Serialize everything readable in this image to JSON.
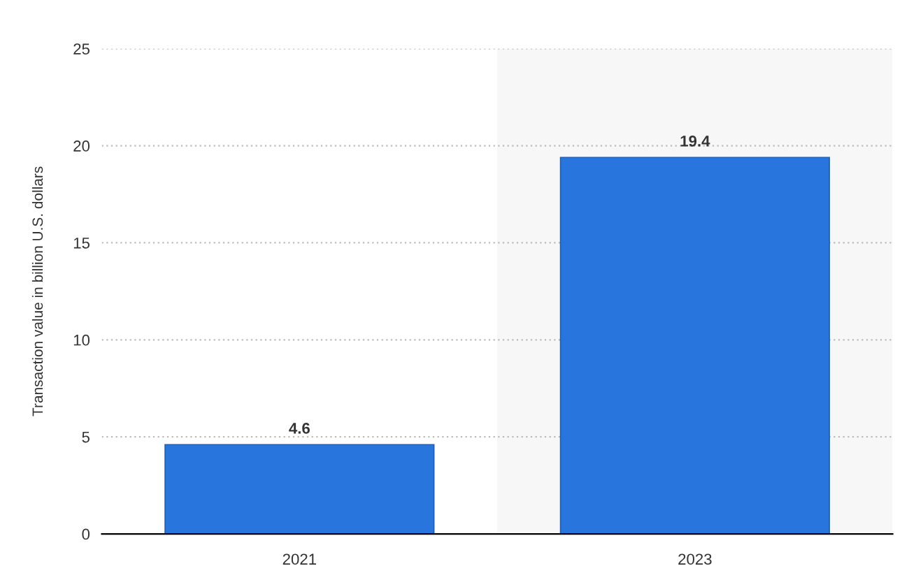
{
  "chart_data": {
    "type": "bar",
    "ylabel": "Transaction value in billion U.S. dollars",
    "categories": [
      "2021",
      "2023"
    ],
    "values": [
      4.6,
      19.4
    ],
    "color": "#2876dd",
    "ylim": [
      0,
      25
    ],
    "yticks": [
      0,
      5,
      10,
      15,
      20,
      25
    ],
    "grid": "y",
    "data_labels": true,
    "bands": [
      {
        "axis": "x",
        "from": "2023",
        "to": "2023",
        "color": "#f7f7f7"
      }
    ]
  }
}
